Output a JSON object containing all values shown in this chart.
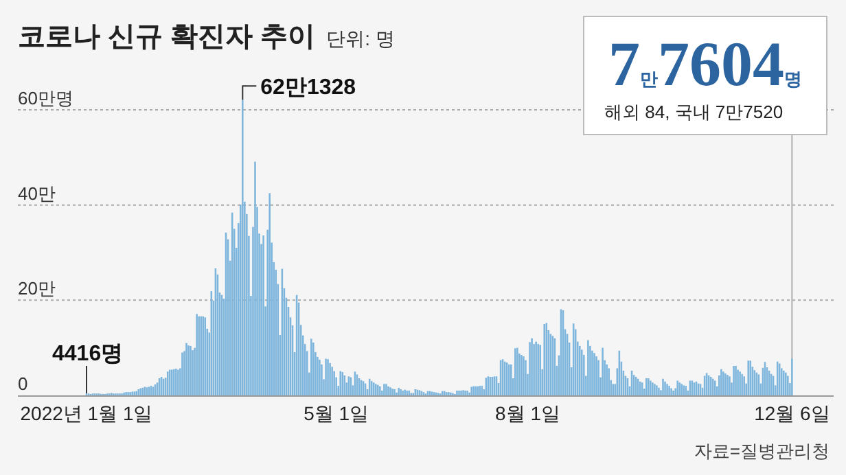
{
  "chart_data": {
    "type": "bar",
    "title": "코로나 신규 확진자 추이",
    "subtitle": "단위: 명",
    "color": "#7db5dc",
    "xlim": [
      "2021-11-29",
      "2022-12-26"
    ],
    "xticks": [
      {
        "value": "2022-01-01",
        "label": "2022년 1월 1일"
      },
      {
        "value": "2022-05-01",
        "label": "5월 1일"
      },
      {
        "value": "2022-08-01",
        "label": "8월 1일"
      },
      {
        "value": "2022-12-06",
        "label": "12월 6일"
      }
    ],
    "ylim": [
      0,
      62.1328
    ],
    "yticks": [
      {
        "value": 0,
        "label": "0"
      },
      {
        "value": 20,
        "label": "20만"
      },
      {
        "value": 40,
        "label": "40만"
      },
      {
        "value": 60,
        "label": "60만명"
      }
    ],
    "grid": "y",
    "annotations": [
      {
        "text": "62만1328",
        "x": "2022-03-17",
        "y": 62.1328
      },
      {
        "text": "4416명",
        "x": "2022-01-01",
        "y": 0.4416
      },
      {
        "text": "7만7604명",
        "x": "2022-12-06",
        "y": 7.7604
      },
      "해외 84, 국내 7만7520",
      "자료=질병관리청"
    ],
    "x": [
      "2022-01-01",
      "2022-01-02",
      "2022-01-03",
      "2022-01-04",
      "2022-01-05",
      "2022-01-06",
      "2022-01-07",
      "2022-01-08",
      "2022-01-09",
      "2022-01-10",
      "2022-01-11",
      "2022-01-12",
      "2022-01-13",
      "2022-01-14",
      "2022-01-15",
      "2022-01-16",
      "2022-01-17",
      "2022-01-18",
      "2022-01-19",
      "2022-01-20",
      "2022-01-21",
      "2022-01-22",
      "2022-01-23",
      "2022-01-24",
      "2022-01-25",
      "2022-01-26",
      "2022-01-27",
      "2022-01-28",
      "2022-01-29",
      "2022-01-30",
      "2022-01-31",
      "2022-02-01",
      "2022-02-02",
      "2022-02-03",
      "2022-02-04",
      "2022-02-05",
      "2022-02-06",
      "2022-02-07",
      "2022-02-08",
      "2022-02-09",
      "2022-02-10",
      "2022-02-11",
      "2022-02-12",
      "2022-02-13",
      "2022-02-14",
      "2022-02-15",
      "2022-02-16",
      "2022-02-17",
      "2022-02-18",
      "2022-02-19",
      "2022-02-20",
      "2022-02-21",
      "2022-02-22",
      "2022-02-23",
      "2022-02-24",
      "2022-02-25",
      "2022-02-26",
      "2022-02-27",
      "2022-02-28",
      "2022-03-01",
      "2022-03-02",
      "2022-03-03",
      "2022-03-04",
      "2022-03-05",
      "2022-03-06",
      "2022-03-07",
      "2022-03-08",
      "2022-03-09",
      "2022-03-10",
      "2022-03-11",
      "2022-03-12",
      "2022-03-13",
      "2022-03-14",
      "2022-03-15",
      "2022-03-16",
      "2022-03-17",
      "2022-03-18",
      "2022-03-19",
      "2022-03-20",
      "2022-03-21",
      "2022-03-22",
      "2022-03-23",
      "2022-03-24",
      "2022-03-25",
      "2022-03-26",
      "2022-03-27",
      "2022-03-28",
      "2022-03-29",
      "2022-03-30",
      "2022-03-31",
      "2022-04-01",
      "2022-04-02",
      "2022-04-03",
      "2022-04-04",
      "2022-04-05",
      "2022-04-06",
      "2022-04-07",
      "2022-04-08",
      "2022-04-09",
      "2022-04-10",
      "2022-04-11",
      "2022-04-12",
      "2022-04-13",
      "2022-04-14",
      "2022-04-15",
      "2022-04-16",
      "2022-04-17",
      "2022-04-18",
      "2022-04-19",
      "2022-04-20",
      "2022-04-21",
      "2022-04-22",
      "2022-04-23",
      "2022-04-24",
      "2022-04-25",
      "2022-04-26",
      "2022-04-27",
      "2022-04-28",
      "2022-04-29",
      "2022-04-30",
      "2022-05-01",
      "2022-05-02",
      "2022-05-03",
      "2022-05-04",
      "2022-05-05",
      "2022-05-06",
      "2022-05-07",
      "2022-05-08",
      "2022-05-09",
      "2022-05-10",
      "2022-05-11",
      "2022-05-12",
      "2022-05-13",
      "2022-05-14",
      "2022-05-15",
      "2022-05-16",
      "2022-05-17",
      "2022-05-18",
      "2022-05-19",
      "2022-05-20",
      "2022-05-21",
      "2022-05-22",
      "2022-05-23",
      "2022-05-24",
      "2022-05-25",
      "2022-05-26",
      "2022-05-27",
      "2022-05-28",
      "2022-05-29",
      "2022-05-30",
      "2022-05-31",
      "2022-06-01",
      "2022-06-02",
      "2022-06-03",
      "2022-06-04",
      "2022-06-05",
      "2022-06-06",
      "2022-06-07",
      "2022-06-08",
      "2022-06-09",
      "2022-06-10",
      "2022-06-11",
      "2022-06-12",
      "2022-06-13",
      "2022-06-14",
      "2022-06-15",
      "2022-06-16",
      "2022-06-17",
      "2022-06-18",
      "2022-06-19",
      "2022-06-20",
      "2022-06-21",
      "2022-06-22",
      "2022-06-23",
      "2022-06-24",
      "2022-06-25",
      "2022-06-26",
      "2022-06-27",
      "2022-06-28",
      "2022-06-29",
      "2022-06-30",
      "2022-07-01",
      "2022-07-02",
      "2022-07-03",
      "2022-07-04",
      "2022-07-05",
      "2022-07-06",
      "2022-07-07",
      "2022-07-08",
      "2022-07-09",
      "2022-07-10",
      "2022-07-11",
      "2022-07-12",
      "2022-07-13",
      "2022-07-14",
      "2022-07-15",
      "2022-07-16",
      "2022-07-17",
      "2022-07-18",
      "2022-07-19",
      "2022-07-20",
      "2022-07-21",
      "2022-07-22",
      "2022-07-23",
      "2022-07-24",
      "2022-07-25",
      "2022-07-26",
      "2022-07-27",
      "2022-07-28",
      "2022-07-29",
      "2022-07-30",
      "2022-07-31",
      "2022-08-01",
      "2022-08-02",
      "2022-08-03",
      "2022-08-04",
      "2022-08-05",
      "2022-08-06",
      "2022-08-07",
      "2022-08-08",
      "2022-08-09",
      "2022-08-10",
      "2022-08-11",
      "2022-08-12",
      "2022-08-13",
      "2022-08-14",
      "2022-08-15",
      "2022-08-16",
      "2022-08-17",
      "2022-08-18",
      "2022-08-19",
      "2022-08-20",
      "2022-08-21",
      "2022-08-22",
      "2022-08-23",
      "2022-08-24",
      "2022-08-25",
      "2022-08-26",
      "2022-08-27",
      "2022-08-28",
      "2022-08-29",
      "2022-08-30",
      "2022-08-31",
      "2022-09-01",
      "2022-09-02",
      "2022-09-03",
      "2022-09-04",
      "2022-09-05",
      "2022-09-06",
      "2022-09-07",
      "2022-09-08",
      "2022-09-09",
      "2022-09-10",
      "2022-09-11",
      "2022-09-12",
      "2022-09-13",
      "2022-09-14",
      "2022-09-15",
      "2022-09-16",
      "2022-09-17",
      "2022-09-18",
      "2022-09-19",
      "2022-09-20",
      "2022-09-21",
      "2022-09-22",
      "2022-09-23",
      "2022-09-24",
      "2022-09-25",
      "2022-09-26",
      "2022-09-27",
      "2022-09-28",
      "2022-09-29",
      "2022-09-30",
      "2022-10-01",
      "2022-10-02",
      "2022-10-03",
      "2022-10-04",
      "2022-10-05",
      "2022-10-06",
      "2022-10-07",
      "2022-10-08",
      "2022-10-09",
      "2022-10-10",
      "2022-10-11",
      "2022-10-12",
      "2022-10-13",
      "2022-10-14",
      "2022-10-15",
      "2022-10-16",
      "2022-10-17",
      "2022-10-18",
      "2022-10-19",
      "2022-10-20",
      "2022-10-21",
      "2022-10-22",
      "2022-10-23",
      "2022-10-24",
      "2022-10-25",
      "2022-10-26",
      "2022-10-27",
      "2022-10-28",
      "2022-10-29",
      "2022-10-30",
      "2022-10-31",
      "2022-11-01",
      "2022-11-02",
      "2022-11-03",
      "2022-11-04",
      "2022-11-05",
      "2022-11-06",
      "2022-11-07",
      "2022-11-08",
      "2022-11-09",
      "2022-11-10",
      "2022-11-11",
      "2022-11-12",
      "2022-11-13",
      "2022-11-14",
      "2022-11-15",
      "2022-11-16",
      "2022-11-17",
      "2022-11-18",
      "2022-11-19",
      "2022-11-20",
      "2022-11-21",
      "2022-11-22",
      "2022-11-23",
      "2022-11-24",
      "2022-11-25",
      "2022-11-26",
      "2022-11-27",
      "2022-11-28",
      "2022-11-29",
      "2022-11-30",
      "2022-12-01",
      "2022-12-02",
      "2022-12-03",
      "2022-12-04",
      "2022-12-05",
      "2022-12-06"
    ],
    "values": [
      0.4416,
      0.4,
      0.3,
      0.4,
      0.4,
      0.4,
      0.4,
      0.3,
      0.3,
      0.3,
      0.4,
      0.4,
      0.5,
      0.4,
      0.4,
      0.4,
      0.4,
      0.4,
      0.6,
      0.7,
      0.7,
      0.7,
      0.8,
      0.8,
      0.9,
      1.3,
      1.5,
      1.6,
      1.8,
      1.7,
      1.8,
      2.0,
      1.8,
      2.3,
      2.7,
      3.6,
      3.9,
      3.5,
      3.7,
      5.0,
      5.4,
      5.4,
      5.5,
      5.6,
      5.4,
      5.7,
      9.0,
      9.3,
      11.0,
      10.5,
      10.4,
      9.5,
      10.0,
      17.1,
      16.6,
      16.6,
      16.6,
      16.4,
      14.0,
      13.2,
      21.9,
      19.9,
      26.7,
      25.4,
      21.6,
      21.1,
      20.3,
      34.2,
      32.8,
      28.3,
      38.4,
      35.0,
      31.0,
      36.2,
      40.1,
      62.1328,
      40.7,
      38.1,
      33.5,
      20.9,
      35.4,
      49.1,
      39.6,
      34.0,
      31.8,
      33.6,
      18.7,
      34.8,
      42.5,
      32.1,
      28.0,
      26.4,
      23.4,
      12.7,
      26.6,
      22.5,
      20.5,
      18.6,
      16.4,
      14.7,
      9.1,
      21.1,
      19.5,
      14.8,
      12.6,
      10.8,
      9.3,
      4.8,
      11.9,
      11.1,
      9.1,
      8.1,
      7.5,
      6.5,
      3.4,
      7.7,
      7.6,
      6.8,
      6.0,
      5.1,
      3.8,
      2.0,
      5.1,
      4.9,
      4.2,
      2.7,
      4.0,
      3.8,
      2.1,
      5.0,
      4.4,
      3.6,
      3.2,
      3.0,
      2.5,
      1.3,
      3.5,
      3.0,
      2.7,
      2.4,
      2.2,
      1.9,
      1.0,
      2.4,
      2.4,
      1.9,
      1.7,
      1.4,
      1.3,
      0.6,
      1.6,
      1.3,
      1.0,
      1.2,
      1.0,
      1.0,
      0.5,
      0.5,
      1.3,
      1.2,
      1.1,
      0.9,
      0.7,
      0.4,
      0.9,
      0.9,
      0.8,
      0.7,
      0.6,
      0.5,
      0.4,
      0.9,
      0.9,
      0.7,
      0.7,
      0.6,
      0.5,
      0.3,
      1.0,
      1.0,
      1.0,
      1.1,
      1.0,
      1.0,
      0.6,
      1.8,
      1.9,
      1.9,
      1.9,
      2.0,
      2.0,
      1.3,
      3.7,
      4.0,
      3.9,
      3.9,
      4.0,
      4.0,
      2.6,
      7.4,
      7.6,
      7.1,
      6.9,
      6.5,
      6.5,
      3.6,
      9.9,
      10.0,
      8.8,
      8.5,
      8.2,
      7.4,
      4.5,
      11.2,
      12.0,
      10.8,
      11.3,
      10.8,
      10.6,
      5.5,
      15.0,
      15.2,
      13.7,
      12.9,
      12.5,
      12.0,
      6.2,
      8.4,
      18.1,
      17.9,
      13.9,
      12.9,
      11.1,
      5.9,
      15.1,
      13.9,
      11.3,
      10.4,
      9.6,
      8.5,
      4.1,
      11.6,
      10.4,
      9.4,
      8.9,
      8.2,
      7.4,
      3.8,
      10.0,
      7.4,
      6.5,
      5.7,
      3.2,
      2.4,
      2.4,
      5.7,
      9.4,
      7.1,
      5.2,
      4.1,
      3.6,
      1.9,
      5.2,
      4.3,
      3.9,
      3.5,
      2.9,
      2.7,
      1.4,
      3.6,
      3.6,
      3.1,
      2.7,
      2.4,
      2.1,
      1.6,
      1.1,
      3.5,
      2.9,
      2.4,
      2.0,
      1.5,
      1.0,
      1.5,
      3.1,
      2.7,
      2.4,
      2.1,
      2.0,
      1.0,
      3.1,
      3.1,
      2.7,
      2.9,
      2.5,
      2.4,
      1.6,
      4.1,
      4.7,
      4.2,
      3.9,
      3.5,
      3.1,
      1.9,
      4.2,
      5.5,
      5.0,
      4.6,
      4.3,
      4.0,
      2.7,
      6.2,
      6.2,
      5.4,
      5.0,
      4.5,
      4.0,
      2.5,
      7.3,
      7.3,
      6.0,
      5.3,
      4.8,
      4.4,
      2.5,
      5.8,
      7.0,
      5.9,
      5.2,
      4.5,
      4.1,
      2.1,
      7.1,
      6.7,
      5.7,
      5.2,
      4.8,
      4.1,
      2.6,
      7.7604
    ]
  }
}
